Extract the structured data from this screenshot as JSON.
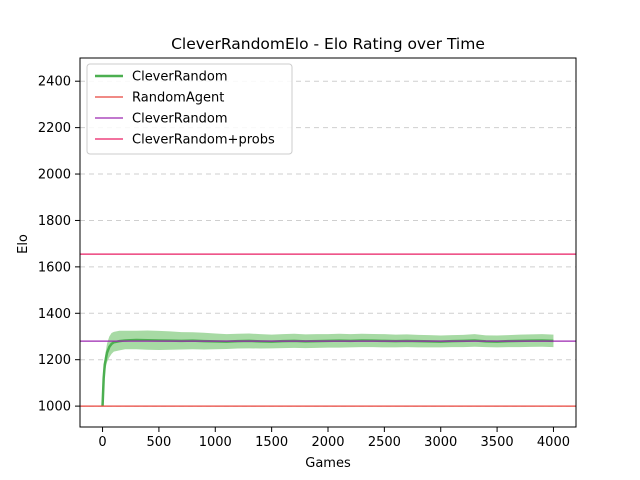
{
  "chart_data": {
    "type": "line",
    "title": "CleverRandomElo - Elo Rating over Time",
    "xlabel": "Games",
    "ylabel": "Elo",
    "xlim": [
      -200,
      4200
    ],
    "ylim": [
      910,
      2500
    ],
    "xticks": [
      0,
      500,
      1000,
      1500,
      2000,
      2500,
      3000,
      3500,
      4000
    ],
    "yticks": [
      1000,
      1200,
      1400,
      1600,
      1800,
      2000,
      2200,
      2400
    ],
    "grid": "y-dashed",
    "legend_position": "top-left",
    "series": [
      {
        "name": "CleverRandom",
        "kind": "mean-with-band",
        "color": "#4caf50",
        "band_color": "#98d494",
        "x": [
          0,
          10,
          20,
          40,
          60,
          80,
          100,
          150,
          200,
          300,
          400,
          500,
          600,
          700,
          800,
          900,
          1000,
          1100,
          1200,
          1300,
          1400,
          1500,
          1600,
          1700,
          1800,
          1900,
          2000,
          2100,
          2200,
          2300,
          2400,
          2500,
          2600,
          2700,
          2800,
          2900,
          3000,
          3100,
          3200,
          3300,
          3400,
          3500,
          3600,
          3700,
          3800,
          3900,
          4000
        ],
        "y": [
          1000,
          1120,
          1180,
          1230,
          1255,
          1268,
          1275,
          1280,
          1283,
          1285,
          1284,
          1283,
          1282,
          1281,
          1282,
          1280,
          1279,
          1278,
          1280,
          1281,
          1279,
          1278,
          1280,
          1281,
          1279,
          1280,
          1281,
          1282,
          1281,
          1283,
          1282,
          1281,
          1280,
          1281,
          1280,
          1279,
          1278,
          1280,
          1281,
          1283,
          1279,
          1278,
          1280,
          1281,
          1282,
          1283,
          1281
        ],
        "lower": [
          1000,
          1100,
          1150,
          1190,
          1210,
          1225,
          1235,
          1240,
          1245,
          1245,
          1243,
          1242,
          1243,
          1244,
          1245,
          1244,
          1245,
          1246,
          1248,
          1249,
          1248,
          1249,
          1250,
          1251,
          1250,
          1251,
          1252,
          1252,
          1253,
          1254,
          1254,
          1253,
          1253,
          1254,
          1253,
          1253,
          1253,
          1254,
          1254,
          1256,
          1254,
          1253,
          1254,
          1254,
          1255,
          1256,
          1254
        ],
        "upper": [
          1000,
          1140,
          1210,
          1270,
          1300,
          1315,
          1320,
          1325,
          1325,
          1325,
          1326,
          1324,
          1322,
          1319,
          1318,
          1316,
          1313,
          1310,
          1312,
          1313,
          1310,
          1308,
          1310,
          1312,
          1309,
          1310,
          1310,
          1312,
          1310,
          1312,
          1311,
          1310,
          1308,
          1309,
          1307,
          1306,
          1304,
          1306,
          1307,
          1310,
          1305,
          1304,
          1306,
          1308,
          1309,
          1310,
          1308
        ]
      },
      {
        "name": "RandomAgent",
        "kind": "hline",
        "color": "#e8453c",
        "y": 1000
      },
      {
        "name": "CleverRandom",
        "kind": "hline",
        "color": "#9c27b0",
        "y": 1280
      },
      {
        "name": "CleverRandom+probs",
        "kind": "hline",
        "color": "#e91e63",
        "y": 1655
      }
    ]
  }
}
